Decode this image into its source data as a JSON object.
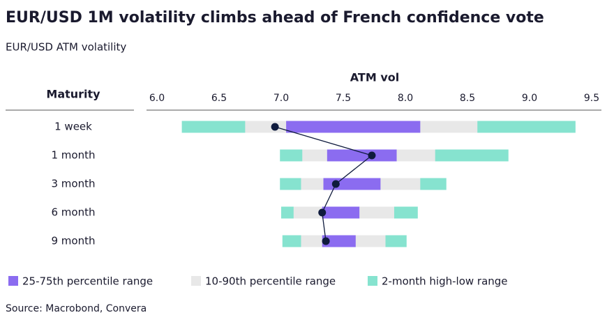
{
  "chart_data": {
    "type": "range_bar",
    "title": "EUR/USD 1M volatility climbs ahead of French confidence vote",
    "subtitle": "EUR/USD ATM volatility",
    "x_label": "ATM vol",
    "category_label": "Maturity",
    "source": "Source: Macrobond, Convera",
    "categories": [
      "1 week",
      "1 month",
      "3 month",
      "6 month",
      "9 month"
    ],
    "series": [
      {
        "name": "25-75th percentile range",
        "color": "#8b6cf0",
        "low": [
          7.04,
          7.37,
          7.34,
          7.33,
          7.33
        ],
        "high": [
          8.12,
          7.93,
          7.8,
          7.63,
          7.6
        ]
      },
      {
        "name": "10-90th percentile range",
        "color": "#e8e8e8",
        "low": [
          6.71,
          7.17,
          7.16,
          7.1,
          7.16
        ],
        "high": [
          8.58,
          8.24,
          8.12,
          7.91,
          7.84
        ]
      },
      {
        "name": "2-month high-low range",
        "color": "#86e3cf",
        "low": [
          6.2,
          6.99,
          6.99,
          7.0,
          7.01
        ],
        "high": [
          9.37,
          8.83,
          8.33,
          8.1,
          8.01
        ]
      }
    ],
    "values": [
      6.95,
      7.73,
      7.44,
      7.33,
      7.36
    ],
    "line_color": "#0f1b3d",
    "xlim": [
      6.0,
      9.5
    ],
    "xticks": [
      {
        "value": 6,
        "label": "6.0"
      },
      6.5,
      {
        "value": 7,
        "label": "7.0"
      },
      7.5,
      {
        "value": 8,
        "label": "8.0"
      },
      8.5,
      {
        "value": 9,
        "label": "9.0"
      },
      9.5
    ]
  }
}
